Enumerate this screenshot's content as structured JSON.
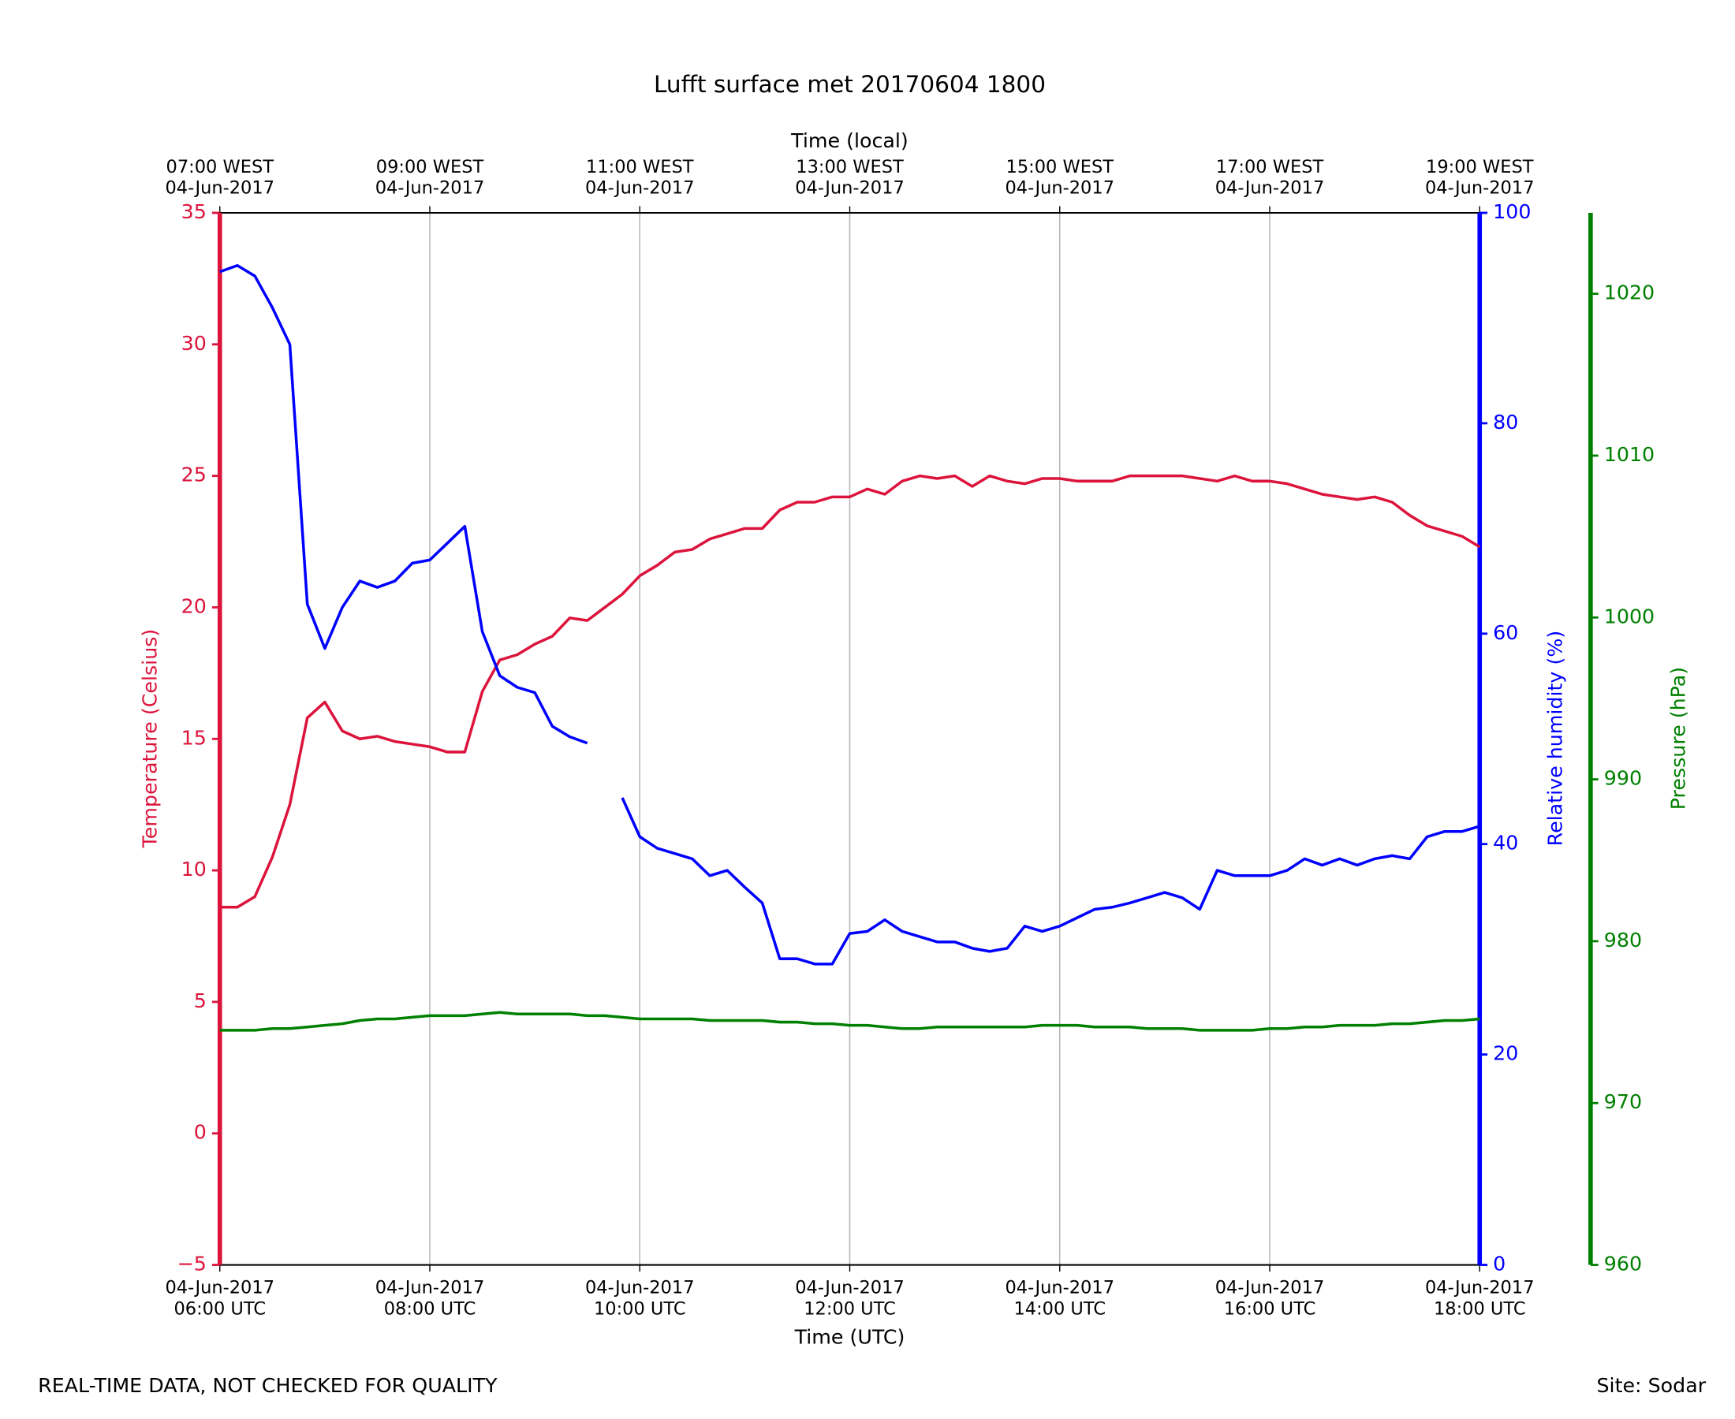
{
  "chart_data": {
    "type": "line",
    "title": "Lufft surface met 20170604 1800",
    "xlabel": "Time (UTC)",
    "x2label": "Time (local)",
    "ylabel": "Temperature (Celsius)",
    "y2label": "Relative humidity (%)",
    "y3label": "Pressure (hPa)",
    "annotations": [
      "REAL-TIME DATA, NOT CHECKED FOR QUALITY",
      "Site: Sodar"
    ],
    "grid": true,
    "xlim": [
      "2017-06-04 06:00",
      "2017-06-04 18:00"
    ],
    "xticks": [
      {
        "value": "2017-06-04 06:00",
        "label": [
          "04-Jun-2017",
          "06:00 UTC"
        ]
      },
      {
        "value": "2017-06-04 08:00",
        "label": [
          "04-Jun-2017",
          "08:00 UTC"
        ]
      },
      {
        "value": "2017-06-04 10:00",
        "label": [
          "04-Jun-2017",
          "10:00 UTC"
        ]
      },
      {
        "value": "2017-06-04 12:00",
        "label": [
          "04-Jun-2017",
          "12:00 UTC"
        ]
      },
      {
        "value": "2017-06-04 14:00",
        "label": [
          "04-Jun-2017",
          "14:00 UTC"
        ]
      },
      {
        "value": "2017-06-04 16:00",
        "label": [
          "04-Jun-2017",
          "16:00 UTC"
        ]
      },
      {
        "value": "2017-06-04 18:00",
        "label": [
          "04-Jun-2017",
          "18:00 UTC"
        ]
      }
    ],
    "x2ticks": [
      {
        "value": "2017-06-04 06:00",
        "label": [
          "07:00 WEST",
          "04-Jun-2017"
        ]
      },
      {
        "value": "2017-06-04 08:00",
        "label": [
          "09:00 WEST",
          "04-Jun-2017"
        ]
      },
      {
        "value": "2017-06-04 10:00",
        "label": [
          "11:00 WEST",
          "04-Jun-2017"
        ]
      },
      {
        "value": "2017-06-04 12:00",
        "label": [
          "13:00 WEST",
          "04-Jun-2017"
        ]
      },
      {
        "value": "2017-06-04 14:00",
        "label": [
          "15:00 WEST",
          "04-Jun-2017"
        ]
      },
      {
        "value": "2017-06-04 16:00",
        "label": [
          "17:00 WEST",
          "04-Jun-2017"
        ]
      },
      {
        "value": "2017-06-04 18:00",
        "label": [
          "19:00 WEST",
          "04-Jun-2017"
        ]
      }
    ],
    "ylim": [
      -5,
      35
    ],
    "yticks": [
      {
        "value": -5,
        "label": "−5"
      },
      0,
      5,
      10,
      15,
      20,
      25,
      30,
      35
    ],
    "y2lim": [
      0,
      100
    ],
    "y2ticks": [
      0,
      20,
      40,
      60,
      80,
      100
    ],
    "y3lim": [
      960,
      1025
    ],
    "y3ticks": [
      960,
      970,
      980,
      990,
      1000,
      1010,
      1020
    ],
    "x": [
      "2017-06-04 06:00",
      "2017-06-04 06:10",
      "2017-06-04 06:20",
      "2017-06-04 06:30",
      "2017-06-04 06:40",
      "2017-06-04 06:50",
      "2017-06-04 07:00",
      "2017-06-04 07:10",
      "2017-06-04 07:20",
      "2017-06-04 07:30",
      "2017-06-04 07:40",
      "2017-06-04 07:50",
      "2017-06-04 08:00",
      "2017-06-04 08:10",
      "2017-06-04 08:20",
      "2017-06-04 08:30",
      "2017-06-04 08:40",
      "2017-06-04 08:50",
      "2017-06-04 09:00",
      "2017-06-04 09:10",
      "2017-06-04 09:20",
      "2017-06-04 09:30",
      "2017-06-04 09:40",
      "2017-06-04 09:50",
      "2017-06-04 10:00",
      "2017-06-04 10:10",
      "2017-06-04 10:20",
      "2017-06-04 10:30",
      "2017-06-04 10:40",
      "2017-06-04 10:50",
      "2017-06-04 11:00",
      "2017-06-04 11:10",
      "2017-06-04 11:20",
      "2017-06-04 11:30",
      "2017-06-04 11:40",
      "2017-06-04 11:50",
      "2017-06-04 12:00",
      "2017-06-04 12:10",
      "2017-06-04 12:20",
      "2017-06-04 12:30",
      "2017-06-04 12:40",
      "2017-06-04 12:50",
      "2017-06-04 13:00",
      "2017-06-04 13:10",
      "2017-06-04 13:20",
      "2017-06-04 13:30",
      "2017-06-04 13:40",
      "2017-06-04 13:50",
      "2017-06-04 14:00",
      "2017-06-04 14:10",
      "2017-06-04 14:20",
      "2017-06-04 14:30",
      "2017-06-04 14:40",
      "2017-06-04 14:50",
      "2017-06-04 15:00",
      "2017-06-04 15:10",
      "2017-06-04 15:20",
      "2017-06-04 15:30",
      "2017-06-04 15:40",
      "2017-06-04 15:50",
      "2017-06-04 16:00",
      "2017-06-04 16:10",
      "2017-06-04 16:20",
      "2017-06-04 16:30",
      "2017-06-04 16:40",
      "2017-06-04 16:50",
      "2017-06-04 17:00",
      "2017-06-04 17:10",
      "2017-06-04 17:20",
      "2017-06-04 17:30",
      "2017-06-04 17:40",
      "2017-06-04 17:50",
      "2017-06-04 18:00"
    ],
    "series": [
      {
        "name": "Temperature",
        "color": "#dc143c",
        "axis": "y",
        "values": [
          8.6,
          8.6,
          9.0,
          10.5,
          12.5,
          15.8,
          16.4,
          15.3,
          15.0,
          15.1,
          14.9,
          14.8,
          14.7,
          14.5,
          14.5,
          16.8,
          18.0,
          18.2,
          18.6,
          18.9,
          19.6,
          19.5,
          20.0,
          20.5,
          21.2,
          21.6,
          22.1,
          22.2,
          22.6,
          22.8,
          23.0,
          23.0,
          23.7,
          24.0,
          24.0,
          24.2,
          24.2,
          24.5,
          24.3,
          24.8,
          25.0,
          24.9,
          25.0,
          24.6,
          25.0,
          24.8,
          24.7,
          24.9,
          24.9,
          24.8,
          24.8,
          24.8,
          25.0,
          25.0,
          25.0,
          25.0,
          24.9,
          24.8,
          25.0,
          24.8,
          24.8,
          24.7,
          24.5,
          24.3,
          24.2,
          24.1,
          24.2,
          24.0,
          23.5,
          23.1,
          22.9,
          22.7,
          22.3
        ]
      },
      {
        "name": "Relative humidity",
        "color": "#0000ff",
        "axis": "y2",
        "values": [
          94.4,
          95.0,
          94.0,
          91.0,
          87.5,
          62.8,
          58.6,
          62.5,
          65.0,
          64.4,
          65.0,
          66.7,
          67.0,
          68.6,
          70.2,
          60.2,
          56.0,
          54.9,
          54.4,
          51.2,
          50.2,
          49.6,
          null,
          44.4,
          40.7,
          39.6,
          39.1,
          38.6,
          37.0,
          37.5,
          35.9,
          34.4,
          29.1,
          29.1,
          28.6,
          28.6,
          31.5,
          31.7,
          32.8,
          31.7,
          31.2,
          30.7,
          30.7,
          30.1,
          29.8,
          30.1,
          32.2,
          31.7,
          32.2,
          33.0,
          33.8,
          34.0,
          34.4,
          34.9,
          35.4,
          34.9,
          33.8,
          37.5,
          37.0,
          37.0,
          37.0,
          37.5,
          38.6,
          38.0,
          38.6,
          38.0,
          38.6,
          38.9,
          38.6,
          40.7,
          41.2,
          41.2,
          41.7
        ]
      },
      {
        "name": "Pressure",
        "color": "#008000",
        "axis": "y3",
        "values": [
          974.5,
          974.5,
          974.5,
          974.6,
          974.6,
          974.7,
          974.8,
          974.9,
          975.1,
          975.2,
          975.2,
          975.3,
          975.4,
          975.4,
          975.4,
          975.5,
          975.6,
          975.5,
          975.5,
          975.5,
          975.5,
          975.4,
          975.4,
          975.3,
          975.2,
          975.2,
          975.2,
          975.2,
          975.1,
          975.1,
          975.1,
          975.1,
          975.0,
          975.0,
          974.9,
          974.9,
          974.8,
          974.8,
          974.7,
          974.6,
          974.6,
          974.7,
          974.7,
          974.7,
          974.7,
          974.7,
          974.7,
          974.8,
          974.8,
          974.8,
          974.7,
          974.7,
          974.7,
          974.6,
          974.6,
          974.6,
          974.5,
          974.5,
          974.5,
          974.5,
          974.6,
          974.6,
          974.7,
          974.7,
          974.8,
          974.8,
          974.8,
          974.9,
          974.9,
          975.0,
          975.1,
          975.1,
          975.2
        ]
      }
    ]
  }
}
